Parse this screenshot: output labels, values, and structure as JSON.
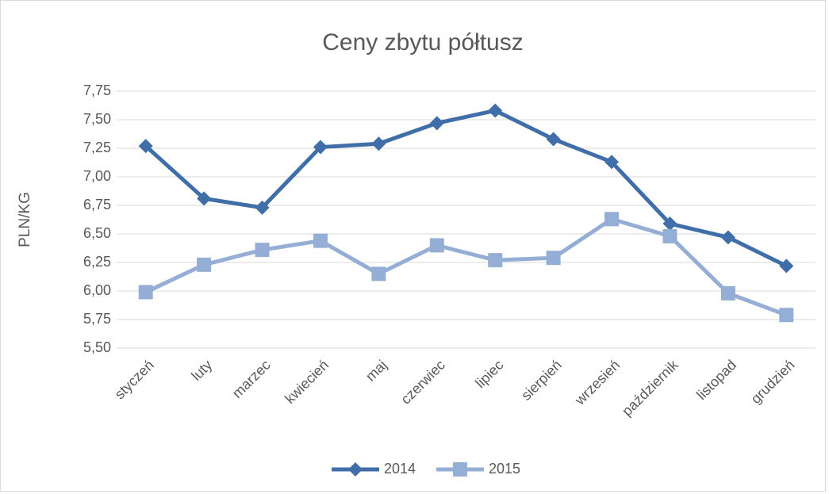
{
  "chart_data": {
    "type": "line",
    "title": "Ceny zbytu półtusz",
    "y_label": "PLN/KG",
    "categories": [
      "styczeń",
      "luty",
      "marzec",
      "kwiecień",
      "maj",
      "czerwiec",
      "lipiec",
      "sierpień",
      "wrzesień",
      "październik",
      "listopad",
      "grudzień"
    ],
    "series": [
      {
        "name": "2014",
        "color": "#3f6ea8",
        "marker": "diamond",
        "values": [
          7.27,
          6.81,
          6.73,
          7.26,
          7.29,
          7.47,
          7.58,
          7.33,
          7.13,
          6.59,
          6.47,
          6.22
        ]
      },
      {
        "name": "2015",
        "color": "#95aed5",
        "marker": "square",
        "values": [
          5.99,
          6.23,
          6.36,
          6.44,
          6.15,
          6.4,
          6.27,
          6.29,
          6.63,
          6.48,
          5.98,
          5.79
        ]
      }
    ],
    "ylim": [
      5.5,
      7.75
    ],
    "yticks": [
      {
        "value": 5.5,
        "label": "5,50"
      },
      {
        "value": 5.75,
        "label": "5,75"
      },
      {
        "value": 6,
        "label": "6,00"
      },
      {
        "value": 6.25,
        "label": "6,25"
      },
      {
        "value": 6.5,
        "label": "6,50"
      },
      {
        "value": 6.75,
        "label": "6,75"
      },
      {
        "value": 7,
        "label": "7,00"
      },
      {
        "value": 7.25,
        "label": "7,25"
      },
      {
        "value": 7.5,
        "label": "7,50"
      },
      {
        "value": 7.75,
        "label": "7,75"
      }
    ],
    "grid": true,
    "legend": "bottom"
  }
}
